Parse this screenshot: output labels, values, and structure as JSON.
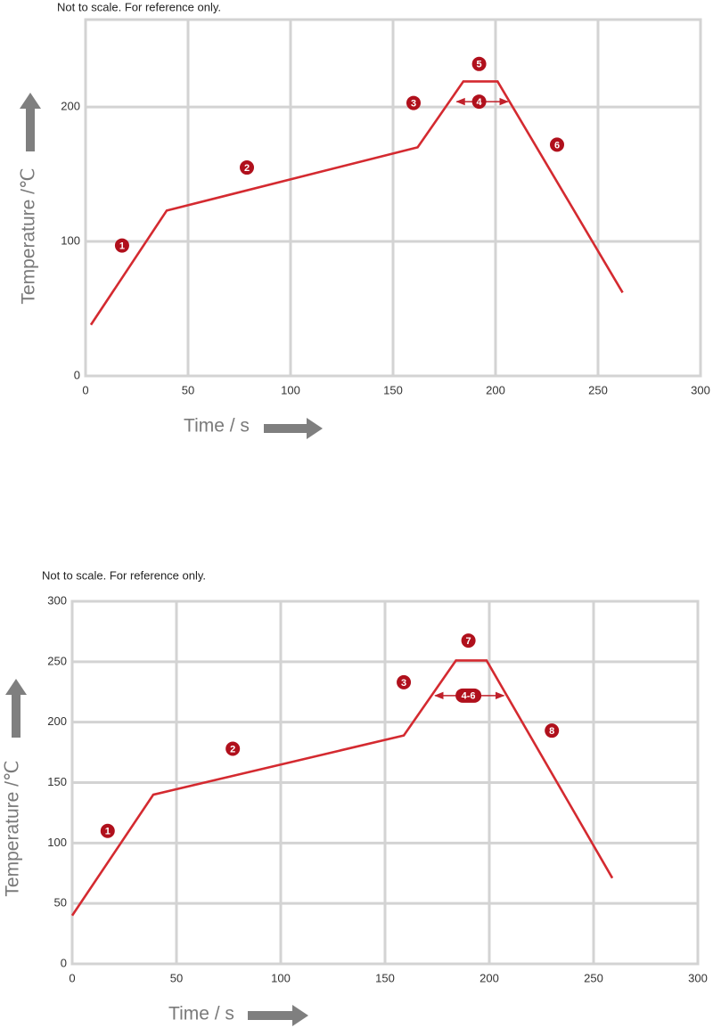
{
  "chart_data": [
    {
      "type": "line",
      "title": "Not to scale. For reference only.",
      "x_label": "Time / s",
      "y_label": "Temperature /℃",
      "x": [
        2.6,
        39.6,
        162,
        184.3,
        201,
        262
      ],
      "values": [
        38,
        123,
        170,
        219,
        219,
        62
      ],
      "color": "#d42a30",
      "xlim": [
        0,
        300
      ],
      "xticks": [
        0,
        50,
        100,
        150,
        200,
        250,
        300
      ],
      "ylim": [
        0,
        265
      ],
      "yticks": [
        0,
        100,
        200
      ],
      "grid": true,
      "annotations": [
        "1",
        "2",
        "3",
        "4",
        "5",
        "6"
      ]
    },
    {
      "type": "line",
      "title": "Not to scale. For reference only.",
      "x_label": "Time / s",
      "y_label": "Temperature /℃",
      "x": [
        0,
        38.9,
        159,
        184,
        198.7,
        259
      ],
      "values": [
        40,
        140,
        189,
        251,
        251,
        71
      ],
      "color": "#d42a30",
      "xlim": [
        0,
        300
      ],
      "xticks": [
        0,
        50,
        100,
        150,
        200,
        250,
        300
      ],
      "ylim": [
        0,
        300
      ],
      "yticks": [
        0,
        50,
        100,
        150,
        200,
        250,
        300
      ],
      "grid": true,
      "annotations": [
        "1",
        "2",
        "3",
        "4-6",
        "7",
        "8"
      ]
    }
  ]
}
